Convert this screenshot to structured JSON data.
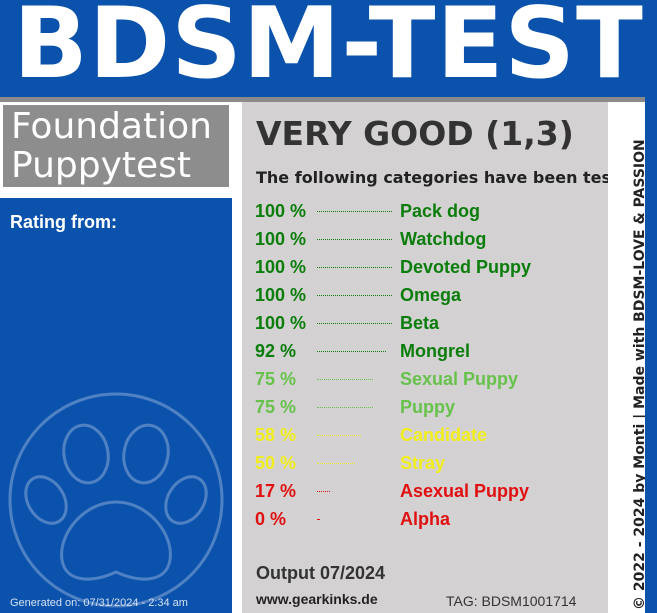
{
  "banner": {
    "title": "BDSM-TEST"
  },
  "left": {
    "title_line1": "Foundation",
    "title_line2": "Puppytest",
    "rating_label": "Rating from:",
    "generated": "Generated on: 07/31/2024 - 2:34 am"
  },
  "main": {
    "grade": "VERY GOOD (1,3)",
    "subtitle": "The following categories have been tested:",
    "results": [
      {
        "pct": "100 %",
        "value": 100,
        "label": "Pack dog",
        "color": "#0a7d0a"
      },
      {
        "pct": "100 %",
        "value": 100,
        "label": "Watchdog",
        "color": "#0a7d0a"
      },
      {
        "pct": "100 %",
        "value": 100,
        "label": "Devoted Puppy",
        "color": "#0a7d0a"
      },
      {
        "pct": "100 %",
        "value": 100,
        "label": "Omega",
        "color": "#0a7d0a"
      },
      {
        "pct": "100 %",
        "value": 100,
        "label": "Beta",
        "color": "#0a7d0a"
      },
      {
        "pct": "92 %",
        "value": 92,
        "label": "Mongrel",
        "color": "#0a7d0a"
      },
      {
        "pct": "75 %",
        "value": 75,
        "label": "Sexual Puppy",
        "color": "#66c24a"
      },
      {
        "pct": "75 %",
        "value": 75,
        "label": "Puppy",
        "color": "#66c24a"
      },
      {
        "pct": "58 %",
        "value": 58,
        "label": "Candidate",
        "color": "#f2ee1c"
      },
      {
        "pct": "50 %",
        "value": 50,
        "label": "Stray",
        "color": "#f2ee1c"
      },
      {
        "pct": "17 %",
        "value": 17,
        "label": "Asexual Puppy",
        "color": "#e01010"
      },
      {
        "pct": "0 %",
        "value": 0,
        "label": "Alpha",
        "color": "#e01010"
      }
    ],
    "output": "Output 07/2024",
    "website": "www.gearkinks.de",
    "tag": "TAG: BDSM1001714"
  },
  "side": {
    "credit": "© 2022 - 2024 by Monti | Made with BDSM-LOVE & PASSION"
  },
  "colors": {
    "brand_blue": "#0b52ad",
    "panel_gray": "#d4d1d3",
    "box_gray": "#8d8d8d"
  },
  "icons": {
    "watermark": "paw-print-icon"
  }
}
